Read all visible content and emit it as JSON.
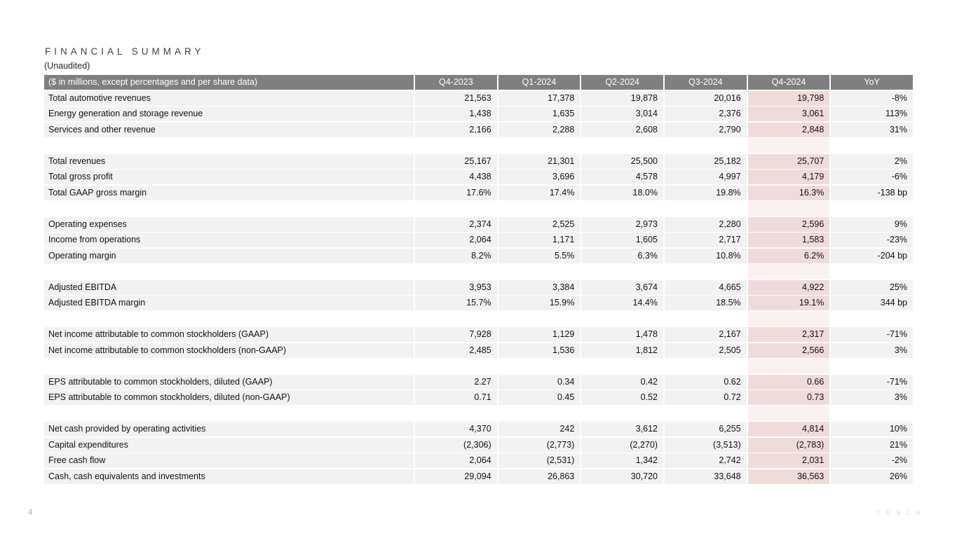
{
  "header": {
    "title": "FINANCIAL SUMMARY",
    "subtitle": "(Unaudited)"
  },
  "footer": {
    "page_number": "4",
    "brand": "TESLA"
  },
  "colors": {
    "table_header_bg": "#7f7f7f",
    "table_header_text": "#ffffff",
    "row_bg": "#f2f2f2",
    "highlight_column_bg": "#f0dbdb",
    "highlight_spacer_bg": "#fbf1f1",
    "title_text": "#3f3f3f",
    "body_text": "#111111"
  },
  "table": {
    "label_header": "($ in millions, except percentages and per share data)",
    "columns": [
      "Q4-2023",
      "Q1-2024",
      "Q2-2024",
      "Q3-2024",
      "Q4-2024",
      "YoY"
    ],
    "highlight_column": "Q4-2024",
    "rows": [
      {
        "label": "Total automotive revenues",
        "values": [
          "21,563",
          "17,378",
          "19,878",
          "20,016",
          "19,798",
          "-8%"
        ]
      },
      {
        "label": "Energy generation and storage revenue",
        "values": [
          "1,438",
          "1,635",
          "3,014",
          "2,376",
          "3,061",
          "113%"
        ]
      },
      {
        "label": "Services and other revenue",
        "values": [
          "2,166",
          "2,288",
          "2,608",
          "2,790",
          "2,848",
          "31%"
        ]
      },
      {
        "spacer": true
      },
      {
        "label": "Total revenues",
        "values": [
          "25,167",
          "21,301",
          "25,500",
          "25,182",
          "25,707",
          "2%"
        ]
      },
      {
        "label": "Total gross profit",
        "values": [
          "4,438",
          "3,696",
          "4,578",
          "4,997",
          "4,179",
          "-6%"
        ]
      },
      {
        "label": "Total GAAP gross margin",
        "values": [
          "17.6%",
          "17.4%",
          "18.0%",
          "19.8%",
          "16.3%",
          "-138 bp"
        ]
      },
      {
        "spacer": true
      },
      {
        "label": "Operating expenses",
        "values": [
          "2,374",
          "2,525",
          "2,973",
          "2,280",
          "2,596",
          "9%"
        ]
      },
      {
        "label": "Income from operations",
        "values": [
          "2,064",
          "1,171",
          "1,605",
          "2,717",
          "1,583",
          "-23%"
        ]
      },
      {
        "label": "Operating margin",
        "values": [
          "8.2%",
          "5.5%",
          "6.3%",
          "10.8%",
          "6.2%",
          "-204 bp"
        ]
      },
      {
        "spacer": true
      },
      {
        "label": "Adjusted EBITDA",
        "values": [
          "3,953",
          "3,384",
          "3,674",
          "4,665",
          "4,922",
          "25%"
        ]
      },
      {
        "label": "Adjusted EBITDA margin",
        "values": [
          "15.7%",
          "15.9%",
          "14.4%",
          "18.5%",
          "19.1%",
          "344 bp"
        ]
      },
      {
        "spacer": true
      },
      {
        "label": "Net income attributable to common stockholders (GAAP)",
        "values": [
          "7,928",
          "1,129",
          "1,478",
          "2,167",
          "2,317",
          "-71%"
        ]
      },
      {
        "label": "Net income attributable to common stockholders (non-GAAP)",
        "values": [
          "2,485",
          "1,536",
          "1,812",
          "2,505",
          "2,566",
          "3%"
        ]
      },
      {
        "spacer": true
      },
      {
        "label": "EPS attributable to common stockholders, diluted (GAAP)",
        "values": [
          "2.27",
          "0.34",
          "0.42",
          "0.62",
          "0.66",
          "-71%"
        ]
      },
      {
        "label": "EPS attributable to common stockholders, diluted (non-GAAP)",
        "values": [
          "0.71",
          "0.45",
          "0.52",
          "0.72",
          "0.73",
          "3%"
        ]
      },
      {
        "spacer": true
      },
      {
        "label": "Net cash provided by operating activities",
        "values": [
          "4,370",
          "242",
          "3,612",
          "6,255",
          "4,814",
          "10%"
        ]
      },
      {
        "label": "Capital expenditures",
        "values": [
          "(2,306)",
          "(2,773)",
          "(2,270)",
          "(3,513)",
          "(2,783)",
          "21%"
        ]
      },
      {
        "label": "Free cash flow",
        "values": [
          "2,064",
          "(2,531)",
          "1,342",
          "2,742",
          "2,031",
          "-2%"
        ]
      },
      {
        "label": "Cash, cash equivalents and investments",
        "values": [
          "29,094",
          "26,863",
          "30,720",
          "33,648",
          "36,563",
          "26%"
        ]
      }
    ]
  }
}
